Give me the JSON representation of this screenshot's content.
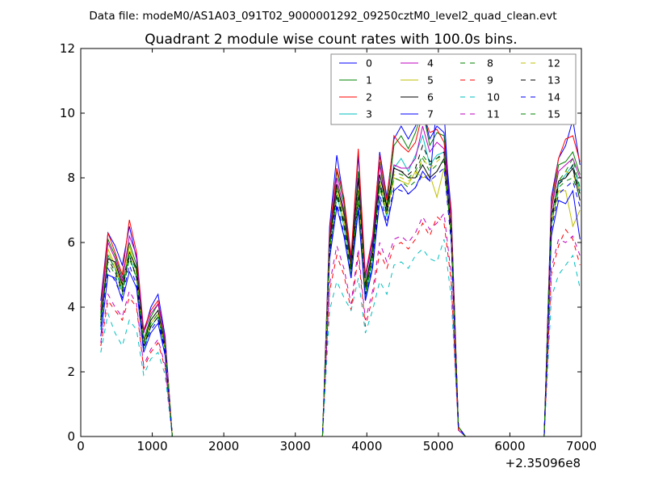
{
  "figure": {
    "suptitle": "Data file: modeM0/AS1A03_091T02_9000001292_09250cztM0_level2_quad_clean.evt"
  },
  "chart_data": {
    "type": "line",
    "title": "Quadrant 2 module wise count rates with 100.0s bins.",
    "xlabel": "",
    "ylabel": "",
    "xlim": [
      0,
      7000
    ],
    "ylim": [
      0,
      12
    ],
    "x_offset_label": "+2.35096e8",
    "xticks": [
      0,
      1000,
      2000,
      3000,
      4000,
      5000,
      6000,
      7000
    ],
    "xtick_labels": [
      "0",
      "1000",
      "2000",
      "3000",
      "4000",
      "5000",
      "6000",
      "7000"
    ],
    "yticks": [
      0,
      2,
      4,
      6,
      8,
      10,
      12
    ],
    "ytick_labels": [
      "0",
      "2",
      "4",
      "6",
      "8",
      "10",
      "12"
    ],
    "legend_position": "top-right",
    "x": [
      280,
      380,
      480,
      580,
      680,
      780,
      880,
      980,
      1080,
      1180,
      1280,
      1380,
      1480,
      1580,
      1680,
      1780,
      1880,
      1980,
      2080,
      2180,
      2280,
      2380,
      2480,
      2580,
      2680,
      2780,
      2880,
      2980,
      3080,
      3180,
      3280,
      3380,
      3480,
      3580,
      3680,
      3780,
      3880,
      3980,
      4080,
      4180,
      4280,
      4380,
      4480,
      4580,
      4680,
      4780,
      4880,
      4980,
      5080,
      5180,
      5280,
      5380,
      5480,
      5580,
      5680,
      5780,
      5880,
      5980,
      6080,
      6180,
      6280,
      6380,
      6480,
      6580,
      6680,
      6780,
      6880,
      6980
    ],
    "series": [
      {
        "name": "0",
        "color": "#0000ff",
        "style": "solid",
        "values": [
          4.2,
          6.3,
          5.9,
          5.3,
          6.5,
          5.5,
          3.2,
          4.0,
          4.4,
          3.1,
          0,
          0,
          0,
          0,
          0,
          0,
          0,
          0,
          0,
          0,
          0,
          0,
          0,
          0,
          0,
          0,
          0,
          0,
          0,
          0,
          0,
          0,
          6.5,
          8.7,
          7.3,
          5.5,
          8.7,
          4.9,
          6.0,
          8.8,
          7.4,
          9.2,
          9.6,
          9.2,
          9.6,
          10.1,
          9.2,
          9.6,
          9.4,
          7.0,
          0.3,
          0,
          0,
          0,
          0,
          0,
          0,
          0,
          0,
          0,
          0,
          0,
          0,
          7.4,
          8.6,
          9.0,
          9.8,
          8.4
        ]
      },
      {
        "name": "1",
        "color": "#008000",
        "style": "solid",
        "values": [
          3.8,
          6.1,
          5.6,
          4.9,
          6.0,
          5.3,
          3.0,
          3.7,
          4.1,
          2.9,
          0,
          0,
          0,
          0,
          0,
          0,
          0,
          0,
          0,
          0,
          0,
          0,
          0,
          0,
          0,
          0,
          0,
          0,
          0,
          0,
          0,
          0,
          6.2,
          8.2,
          7.2,
          5.3,
          8.2,
          4.7,
          5.8,
          8.5,
          7.1,
          9.0,
          9.3,
          8.9,
          9.4,
          10.1,
          9.0,
          9.4,
          9.3,
          6.8,
          0.3,
          0,
          0,
          0,
          0,
          0,
          0,
          0,
          0,
          0,
          0,
          0,
          0,
          7.0,
          8.4,
          8.5,
          8.8,
          8.1
        ]
      },
      {
        "name": "2",
        "color": "#ff0000",
        "style": "solid",
        "values": [
          4.0,
          6.3,
          5.7,
          5.0,
          6.7,
          5.7,
          3.3,
          3.9,
          4.2,
          3.0,
          0,
          0,
          0,
          0,
          0,
          0,
          0,
          0,
          0,
          0,
          0,
          0,
          0,
          0,
          0,
          0,
          0,
          0,
          0,
          0,
          0,
          0,
          6.3,
          8.3,
          7.4,
          5.6,
          8.9,
          5.0,
          6.2,
          8.7,
          7.3,
          9.3,
          9.0,
          8.8,
          9.1,
          10.0,
          9.4,
          9.5,
          9.1,
          6.9,
          0.3,
          0,
          0,
          0,
          0,
          0,
          0,
          0,
          0,
          0,
          0,
          0,
          0,
          7.2,
          8.6,
          9.2,
          9.3,
          8.5
        ]
      },
      {
        "name": "3",
        "color": "#00bfbf",
        "style": "solid",
        "values": [
          3.3,
          5.6,
          5.2,
          4.5,
          5.6,
          4.9,
          2.7,
          3.4,
          3.7,
          2.7,
          0,
          0,
          0,
          0,
          0,
          0,
          0,
          0,
          0,
          0,
          0,
          0,
          0,
          0,
          0,
          0,
          0,
          0,
          0,
          0,
          0,
          0,
          5.8,
          7.5,
          6.5,
          5.0,
          7.4,
          4.3,
          5.4,
          7.8,
          6.8,
          8.3,
          8.6,
          8.2,
          8.7,
          9.3,
          8.4,
          8.7,
          8.8,
          6.3,
          0.3,
          0,
          0,
          0,
          0,
          0,
          0,
          0,
          0,
          0,
          0,
          0,
          0,
          6.5,
          7.8,
          8.1,
          8.4,
          7.6
        ]
      },
      {
        "name": "4",
        "color": "#bf00bf",
        "style": "solid",
        "values": [
          3.9,
          6.0,
          5.5,
          4.8,
          6.2,
          5.6,
          3.2,
          3.8,
          4.1,
          3.0,
          0,
          0,
          0,
          0,
          0,
          0,
          0,
          0,
          0,
          0,
          0,
          0,
          0,
          0,
          0,
          0,
          0,
          0,
          0,
          0,
          0,
          0,
          6.1,
          8.0,
          7.0,
          5.4,
          8.0,
          4.9,
          6.1,
          8.4,
          7.0,
          8.4,
          8.3,
          8.3,
          8.6,
          9.6,
          8.8,
          9.1,
          8.9,
          6.6,
          0.3,
          0,
          0,
          0,
          0,
          0,
          0,
          0,
          0,
          0,
          0,
          0,
          0,
          7.0,
          8.2,
          8.4,
          8.6,
          8.0
        ]
      },
      {
        "name": "5",
        "color": "#bfbf00",
        "style": "solid",
        "values": [
          3.4,
          5.8,
          5.3,
          4.6,
          5.9,
          5.1,
          2.8,
          3.5,
          3.8,
          2.8,
          0,
          0,
          0,
          0,
          0,
          0,
          0,
          0,
          0,
          0,
          0,
          0,
          0,
          0,
          0,
          0,
          0,
          0,
          0,
          0,
          0,
          0,
          5.9,
          7.7,
          6.7,
          5.2,
          7.6,
          4.4,
          5.7,
          7.9,
          6.9,
          8.0,
          7.9,
          7.8,
          8.2,
          8.0,
          8.1,
          7.4,
          8.3,
          6.2,
          0.2,
          0,
          0,
          0,
          0,
          0,
          0,
          0,
          0,
          0,
          0,
          0,
          0,
          6.6,
          7.6,
          7.6,
          6.5,
          7.0
        ]
      },
      {
        "name": "6",
        "color": "#000000",
        "style": "solid",
        "values": [
          3.6,
          5.5,
          5.4,
          4.7,
          5.7,
          5.2,
          2.9,
          3.6,
          3.9,
          2.8,
          0,
          0,
          0,
          0,
          0,
          0,
          0,
          0,
          0,
          0,
          0,
          0,
          0,
          0,
          0,
          0,
          0,
          0,
          0,
          0,
          0,
          0,
          6.0,
          7.8,
          6.9,
          5.3,
          8.0,
          4.6,
          5.8,
          8.1,
          7.1,
          8.3,
          8.2,
          8.0,
          8.0,
          8.4,
          8.0,
          8.2,
          8.6,
          6.4,
          0.3,
          0,
          0,
          0,
          0,
          0,
          0,
          0,
          0,
          0,
          0,
          0,
          0,
          6.8,
          7.9,
          8.0,
          8.3,
          7.3
        ]
      },
      {
        "name": "7",
        "color": "#0000ff",
        "style": "solid",
        "values": [
          3.1,
          5.0,
          4.9,
          4.2,
          5.1,
          4.6,
          2.6,
          3.2,
          3.5,
          2.5,
          0,
          0,
          0,
          0,
          0,
          0,
          0,
          0,
          0,
          0,
          0,
          0,
          0,
          0,
          0,
          0,
          0,
          0,
          0,
          0,
          0,
          0,
          5.5,
          7.1,
          6.2,
          4.9,
          7.0,
          4.2,
          5.2,
          7.3,
          6.5,
          7.6,
          7.8,
          7.5,
          7.7,
          8.2,
          7.9,
          10.3,
          10.1,
          6.1,
          0.2,
          0,
          0,
          0,
          0,
          0,
          0,
          0,
          0,
          0,
          0,
          0,
          0,
          6.2,
          7.3,
          7.2,
          7.6,
          6.1
        ]
      },
      {
        "name": "8",
        "color": "#008000",
        "style": "dashed",
        "values": [
          3.5,
          5.4,
          5.0,
          4.4,
          5.5,
          4.9,
          2.8,
          3.4,
          3.7,
          2.7,
          0,
          0,
          0,
          0,
          0,
          0,
          0,
          0,
          0,
          0,
          0,
          0,
          0,
          0,
          0,
          0,
          0,
          0,
          0,
          0,
          0,
          0,
          5.7,
          7.4,
          6.5,
          5.0,
          7.3,
          4.4,
          5.5,
          7.7,
          6.8,
          8.0,
          7.9,
          7.7,
          7.9,
          8.6,
          8.2,
          8.4,
          8.5,
          6.2,
          0.3,
          0,
          0,
          0,
          0,
          0,
          0,
          0,
          0,
          0,
          0,
          0,
          0,
          6.6,
          7.7,
          7.9,
          8.0,
          7.4
        ]
      },
      {
        "name": "9",
        "color": "#ff0000",
        "style": "dashed",
        "values": [
          2.8,
          4.2,
          3.9,
          3.6,
          4.3,
          4.0,
          2.1,
          2.6,
          2.9,
          2.1,
          0,
          0,
          0,
          0,
          0,
          0,
          0,
          0,
          0,
          0,
          0,
          0,
          0,
          0,
          0,
          0,
          0,
          0,
          0,
          0,
          0,
          0,
          4.5,
          5.6,
          5.0,
          3.9,
          5.6,
          3.4,
          4.3,
          5.7,
          5.2,
          5.9,
          6.0,
          5.8,
          6.1,
          6.6,
          6.2,
          6.8,
          6.6,
          4.8,
          0.2,
          0,
          0,
          0,
          0,
          0,
          0,
          0,
          0,
          0,
          0,
          0,
          0,
          5.0,
          5.9,
          6.4,
          6.1,
          5.3
        ]
      },
      {
        "name": "10",
        "color": "#00bfbf",
        "style": "dashed",
        "values": [
          2.6,
          3.8,
          3.2,
          2.8,
          3.6,
          3.3,
          1.9,
          2.4,
          2.6,
          1.9,
          0,
          0,
          0,
          0,
          0,
          0,
          0,
          0,
          0,
          0,
          0,
          0,
          0,
          0,
          0,
          0,
          0,
          0,
          0,
          0,
          0,
          0,
          3.9,
          4.8,
          4.3,
          3.9,
          4.9,
          3.2,
          3.9,
          4.8,
          4.4,
          5.3,
          5.4,
          5.2,
          5.6,
          5.8,
          5.5,
          5.4,
          6.1,
          4.3,
          0.2,
          0,
          0,
          0,
          0,
          0,
          0,
          0,
          0,
          0,
          0,
          0,
          0,
          4.3,
          5.0,
          5.3,
          5.6,
          4.6
        ]
      },
      {
        "name": "11",
        "color": "#bf00bf",
        "style": "dashed",
        "values": [
          2.9,
          4.4,
          4.0,
          3.7,
          4.5,
          4.1,
          2.2,
          2.7,
          3.0,
          2.2,
          0,
          0,
          0,
          0,
          0,
          0,
          0,
          0,
          0,
          0,
          0,
          0,
          0,
          0,
          0,
          0,
          0,
          0,
          0,
          0,
          0,
          0,
          4.7,
          5.9,
          5.2,
          4.1,
          5.8,
          3.6,
          4.5,
          6.0,
          5.4,
          6.1,
          6.2,
          6.0,
          6.3,
          6.8,
          6.4,
          6.6,
          6.9,
          5.0,
          0.2,
          0,
          0,
          0,
          0,
          0,
          0,
          0,
          0,
          0,
          0,
          0,
          0,
          5.2,
          6.1,
          6.0,
          6.2,
          5.6
        ]
      },
      {
        "name": "12",
        "color": "#bfbf00",
        "style": "dashed",
        "values": [
          3.7,
          5.7,
          5.2,
          4.6,
          5.8,
          5.0,
          2.9,
          3.5,
          3.8,
          2.8,
          0,
          0,
          0,
          0,
          0,
          0,
          0,
          0,
          0,
          0,
          0,
          0,
          0,
          0,
          0,
          0,
          0,
          0,
          0,
          0,
          0,
          0,
          5.9,
          7.6,
          6.8,
          5.1,
          7.7,
          4.5,
          5.6,
          7.9,
          6.9,
          8.1,
          8.0,
          7.9,
          8.1,
          8.6,
          8.3,
          8.5,
          8.7,
          6.4,
          0.3,
          0,
          0,
          0,
          0,
          0,
          0,
          0,
          0,
          0,
          0,
          0,
          0,
          6.8,
          7.9,
          8.2,
          8.1,
          7.6
        ]
      },
      {
        "name": "13",
        "color": "#000000",
        "style": "dashed",
        "values": [
          3.6,
          5.5,
          5.1,
          4.5,
          5.6,
          4.9,
          2.8,
          3.4,
          3.7,
          2.7,
          0,
          0,
          0,
          0,
          0,
          0,
          0,
          0,
          0,
          0,
          0,
          0,
          0,
          0,
          0,
          0,
          0,
          0,
          0,
          0,
          0,
          0,
          5.8,
          7.5,
          6.6,
          5.1,
          7.5,
          4.4,
          5.6,
          7.8,
          6.9,
          8.3,
          8.2,
          8.1,
          8.3,
          9.0,
          8.5,
          8.6,
          8.8,
          6.3,
          0.3,
          0,
          0,
          0,
          0,
          0,
          0,
          0,
          0,
          0,
          0,
          0,
          0,
          6.7,
          7.8,
          8.0,
          8.4,
          7.5
        ]
      },
      {
        "name": "14",
        "color": "#0000ff",
        "style": "dashed",
        "values": [
          3.4,
          5.2,
          4.8,
          4.3,
          5.3,
          4.7,
          2.7,
          3.3,
          3.6,
          2.6,
          0,
          0,
          0,
          0,
          0,
          0,
          0,
          0,
          0,
          0,
          0,
          0,
          0,
          0,
          0,
          0,
          0,
          0,
          0,
          0,
          0,
          0,
          5.6,
          7.2,
          6.3,
          4.9,
          7.1,
          4.2,
          5.3,
          7.5,
          6.6,
          7.7,
          7.6,
          7.5,
          7.7,
          8.1,
          7.9,
          8.1,
          8.3,
          6.0,
          0.3,
          0,
          0,
          0,
          0,
          0,
          0,
          0,
          0,
          0,
          0,
          0,
          0,
          6.4,
          7.5,
          7.7,
          7.9,
          7.1
        ]
      },
      {
        "name": "15",
        "color": "#008000",
        "style": "dashed",
        "values": [
          3.7,
          5.6,
          5.2,
          4.6,
          5.7,
          5.1,
          2.9,
          3.5,
          3.8,
          2.8,
          0,
          0,
          0,
          0,
          0,
          0,
          0,
          0,
          0,
          0,
          0,
          0,
          0,
          0,
          0,
          0,
          0,
          0,
          0,
          0,
          0,
          0,
          5.9,
          7.6,
          6.7,
          5.2,
          7.6,
          4.5,
          5.7,
          7.9,
          7.0,
          8.2,
          8.1,
          8.0,
          8.2,
          8.7,
          8.4,
          8.6,
          8.7,
          6.3,
          0.3,
          0,
          0,
          0,
          0,
          0,
          0,
          0,
          0,
          0,
          0,
          0,
          0,
          6.8,
          7.9,
          8.2,
          8.6,
          7.7
        ]
      }
    ]
  }
}
